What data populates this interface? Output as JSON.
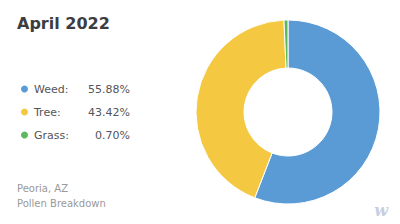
{
  "chart_data": {
    "type": "donut",
    "title": "April 2022",
    "subtitle": "Peoria, AZ\nPollen Breakdown",
    "categories": [
      "Weed:",
      "Tree:",
      "Grass:"
    ],
    "values": [
      55.88,
      43.42,
      0.7
    ],
    "value_labels": [
      "55.88%",
      "43.42%",
      "0.70%"
    ],
    "colors": [
      "#5B9BD5",
      "#F5C842",
      "#5CB85C"
    ],
    "legend": "left",
    "annotation": "w"
  }
}
